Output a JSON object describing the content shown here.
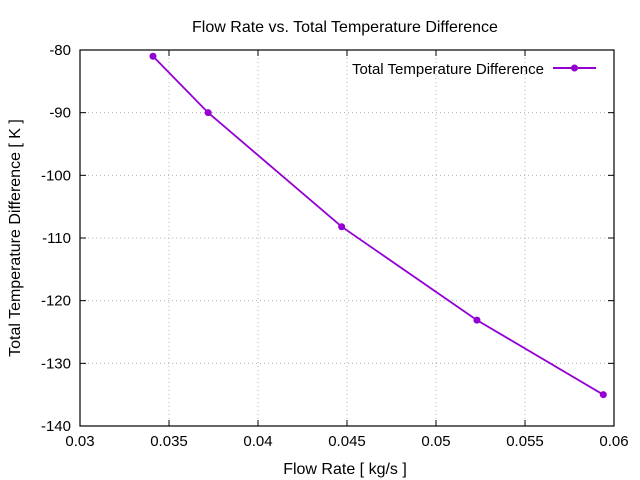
{
  "chart_data": {
    "type": "line",
    "title": "Flow Rate vs. Total Temperature Difference",
    "xlabel": "Flow Rate [ kg/s ]",
    "ylabel": "Total Temperature Difference [ K ]",
    "xlim": [
      0.03,
      0.06
    ],
    "ylim": [
      -140,
      -80
    ],
    "xticks": [
      0.03,
      0.035,
      0.04,
      0.045,
      0.05,
      0.055,
      0.06
    ],
    "xtick_labels": [
      "0.03",
      "0.035",
      "0.04",
      "0.045",
      "0.05",
      "0.055",
      "0.06"
    ],
    "yticks": [
      -140,
      -130,
      -120,
      -110,
      -100,
      -90,
      -80
    ],
    "ytick_labels": [
      "-140",
      "-130",
      "-120",
      "-110",
      "-100",
      "-90",
      "-80"
    ],
    "grid": true,
    "legend_position": "top-right",
    "series": [
      {
        "name": "Total Temperature Difference",
        "color": "#9400d3",
        "marker": "circle",
        "x": [
          0.0341,
          0.0372,
          0.0447,
          0.0523,
          0.0594
        ],
        "y": [
          -81.0,
          -90.0,
          -108.2,
          -123.1,
          -135.0
        ]
      }
    ]
  }
}
